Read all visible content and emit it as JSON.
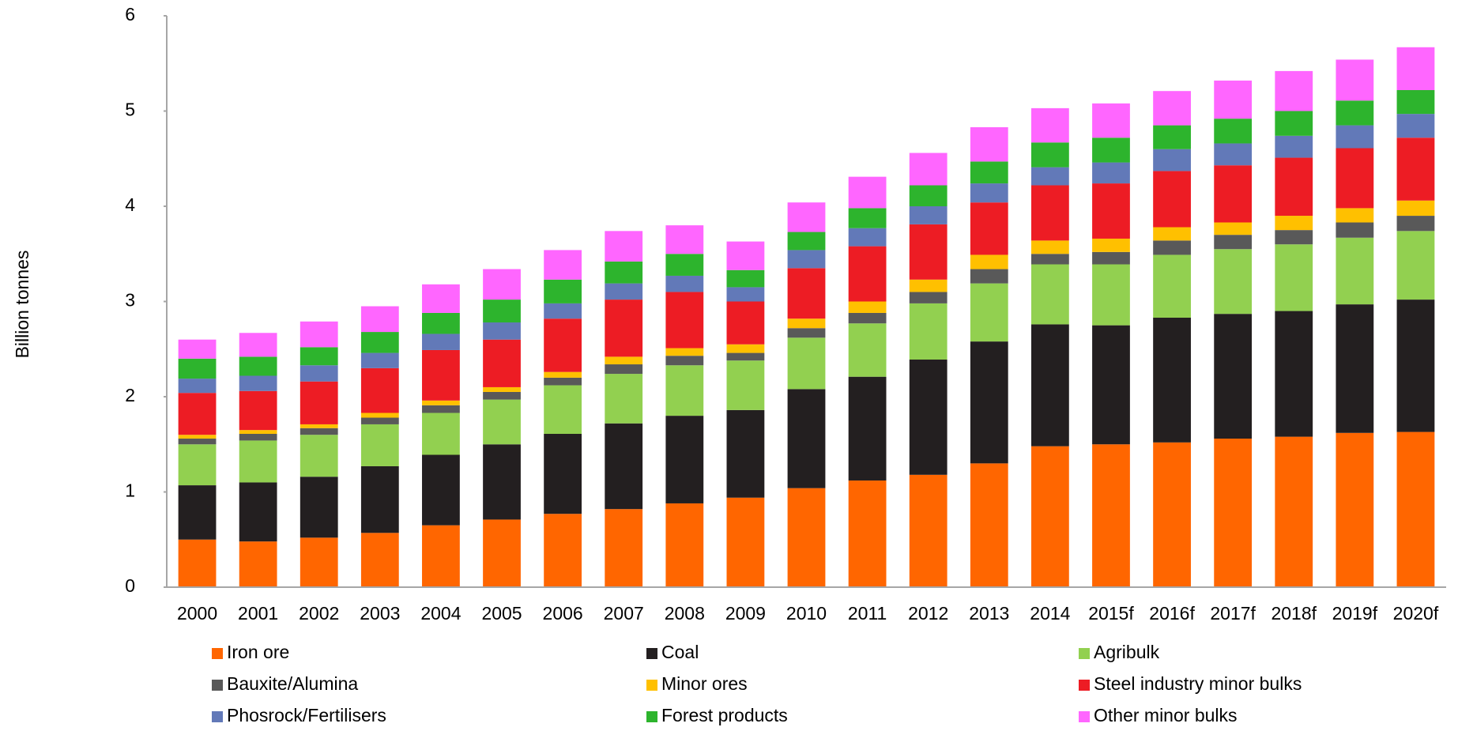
{
  "chart_data": {
    "type": "bar",
    "stacked": true,
    "y_label": "Billion tonnes",
    "categories": [
      "2000",
      "2001",
      "2002",
      "2003",
      "2004",
      "2005",
      "2006",
      "2007",
      "2008",
      "2009",
      "2010",
      "2011",
      "2012",
      "2013",
      "2014",
      "2015f",
      "2016f",
      "2017f",
      "2018f",
      "2019f",
      "2020f"
    ],
    "ylim": [
      0,
      6
    ],
    "yticks": [
      0,
      1,
      2,
      3,
      4,
      5,
      6
    ],
    "grid": false,
    "series": [
      {
        "name": "Iron ore",
        "color": "#ff6600",
        "values": [
          0.5,
          0.48,
          0.52,
          0.57,
          0.65,
          0.71,
          0.77,
          0.82,
          0.88,
          0.94,
          1.04,
          1.12,
          1.18,
          1.3,
          1.48,
          1.5,
          1.52,
          1.56,
          1.58,
          1.62,
          1.63
        ]
      },
      {
        "name": "Coal",
        "color": "#231f20",
        "values": [
          0.57,
          0.62,
          0.64,
          0.7,
          0.74,
          0.79,
          0.84,
          0.9,
          0.92,
          0.92,
          1.04,
          1.09,
          1.21,
          1.28,
          1.28,
          1.25,
          1.31,
          1.31,
          1.32,
          1.35,
          1.39
        ]
      },
      {
        "name": "Agribulk",
        "color": "#92d050",
        "values": [
          0.43,
          0.44,
          0.44,
          0.44,
          0.44,
          0.47,
          0.51,
          0.52,
          0.53,
          0.52,
          0.54,
          0.56,
          0.59,
          0.61,
          0.63,
          0.64,
          0.66,
          0.68,
          0.7,
          0.7,
          0.72
        ]
      },
      {
        "name": "Bauxite/Alumina",
        "color": "#595959",
        "values": [
          0.06,
          0.07,
          0.07,
          0.07,
          0.08,
          0.08,
          0.08,
          0.1,
          0.1,
          0.08,
          0.1,
          0.11,
          0.12,
          0.15,
          0.11,
          0.13,
          0.15,
          0.15,
          0.15,
          0.16,
          0.16
        ]
      },
      {
        "name": "Minor ores",
        "color": "#ffc000",
        "values": [
          0.04,
          0.04,
          0.04,
          0.05,
          0.05,
          0.05,
          0.06,
          0.08,
          0.08,
          0.09,
          0.1,
          0.12,
          0.13,
          0.15,
          0.14,
          0.14,
          0.14,
          0.13,
          0.15,
          0.15,
          0.16
        ]
      },
      {
        "name": "Steel industry minor bulks",
        "color": "#ed1c24",
        "values": [
          0.44,
          0.41,
          0.45,
          0.47,
          0.53,
          0.5,
          0.56,
          0.6,
          0.59,
          0.45,
          0.53,
          0.58,
          0.58,
          0.55,
          0.58,
          0.58,
          0.59,
          0.6,
          0.61,
          0.63,
          0.66
        ]
      },
      {
        "name": "Phosrock/Fertilisers",
        "color": "#6279b8",
        "values": [
          0.15,
          0.16,
          0.17,
          0.16,
          0.17,
          0.18,
          0.16,
          0.17,
          0.17,
          0.15,
          0.19,
          0.19,
          0.19,
          0.2,
          0.19,
          0.22,
          0.23,
          0.23,
          0.23,
          0.24,
          0.25
        ]
      },
      {
        "name": "Forest products",
        "color": "#2db42d",
        "values": [
          0.21,
          0.2,
          0.19,
          0.22,
          0.22,
          0.24,
          0.25,
          0.23,
          0.23,
          0.18,
          0.19,
          0.21,
          0.22,
          0.23,
          0.26,
          0.26,
          0.25,
          0.26,
          0.26,
          0.26,
          0.25
        ]
      },
      {
        "name": "Other minor bulks",
        "color": "#ff66ff",
        "values": [
          0.2,
          0.25,
          0.27,
          0.27,
          0.3,
          0.32,
          0.31,
          0.32,
          0.3,
          0.3,
          0.31,
          0.33,
          0.34,
          0.36,
          0.36,
          0.36,
          0.36,
          0.4,
          0.42,
          0.43,
          0.45
        ]
      }
    ]
  }
}
